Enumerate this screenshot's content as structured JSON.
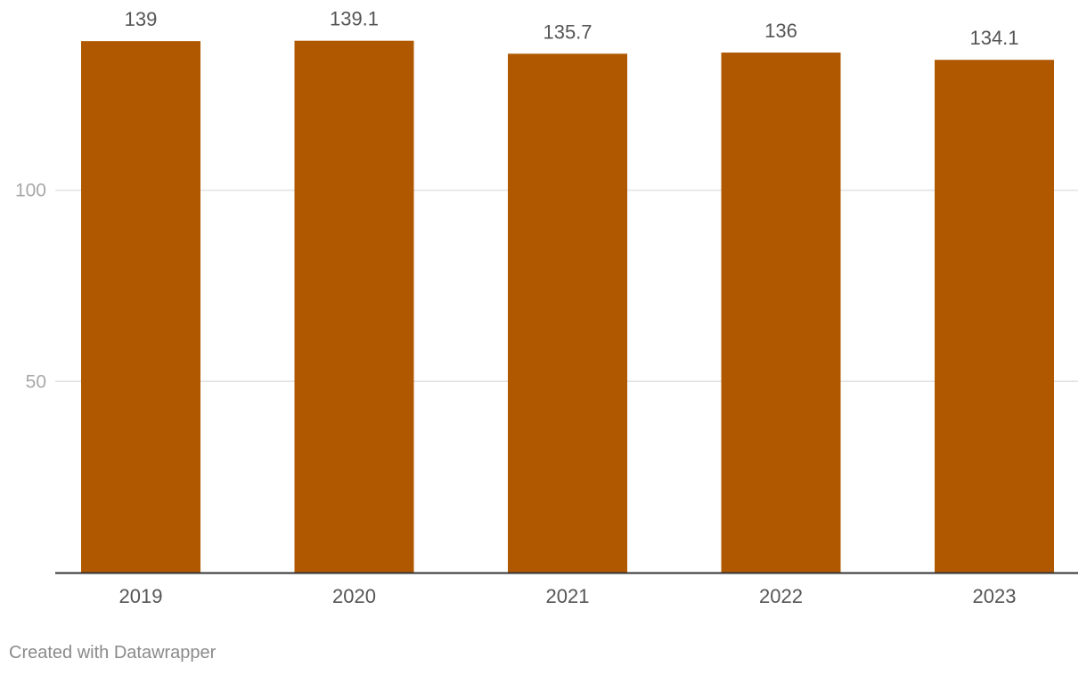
{
  "chart_data": {
    "type": "bar",
    "categories": [
      "2019",
      "2020",
      "2021",
      "2022",
      "2023"
    ],
    "values": [
      139,
      139.1,
      135.7,
      136,
      134.1
    ],
    "value_labels": [
      "139",
      "139.1",
      "135.7",
      "136",
      "134.1"
    ],
    "title": "",
    "xlabel": "",
    "ylabel": "",
    "ylim": [
      0,
      139.5
    ],
    "yticks": [
      50,
      100
    ],
    "ytick_labels": [
      "50",
      "100"
    ],
    "grid": true,
    "bar_color": "#b05800",
    "gridline_color": "#e2e2e2",
    "axis_color": "#333333",
    "label_color": "#555555",
    "tick_label_color": "#a8a8a8"
  },
  "footer": {
    "credit": "Created with Datawrapper"
  }
}
